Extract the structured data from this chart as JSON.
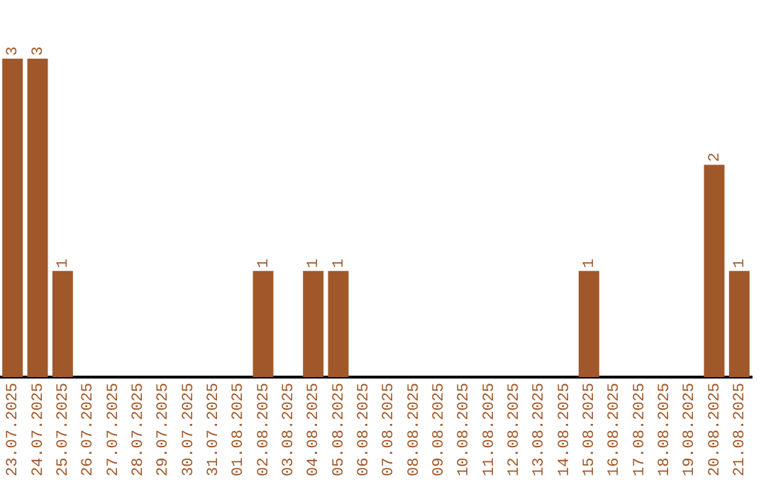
{
  "chart_data": {
    "type": "bar",
    "categories": [
      "23.07.2025",
      "24.07.2025",
      "25.07.2025",
      "26.07.2025",
      "27.07.2025",
      "28.07.2025",
      "29.07.2025",
      "30.07.2025",
      "31.07.2025",
      "01.08.2025",
      "02.08.2025",
      "03.08.2025",
      "04.08.2025",
      "05.08.2025",
      "06.08.2025",
      "07.08.2025",
      "08.08.2025",
      "09.08.2025",
      "10.08.2025",
      "11.08.2025",
      "12.08.2025",
      "13.08.2025",
      "14.08.2025",
      "15.08.2025",
      "16.08.2025",
      "17.08.2025",
      "18.08.2025",
      "19.08.2025",
      "20.08.2025",
      "21.08.2025"
    ],
    "values": [
      3,
      3,
      1,
      0,
      0,
      0,
      0,
      0,
      0,
      0,
      1,
      0,
      1,
      1,
      0,
      0,
      0,
      0,
      0,
      0,
      0,
      0,
      0,
      1,
      0,
      0,
      0,
      0,
      2,
      1
    ],
    "value_labels": [
      "3",
      "3",
      "1",
      null,
      null,
      null,
      null,
      null,
      null,
      null,
      "1",
      null,
      "1",
      "1",
      null,
      null,
      null,
      null,
      null,
      null,
      null,
      null,
      null,
      "1",
      null,
      null,
      null,
      null,
      "2",
      "1"
    ],
    "color": "#a0582a",
    "tick_labels": "x",
    "grid": false,
    "legend": false
  }
}
